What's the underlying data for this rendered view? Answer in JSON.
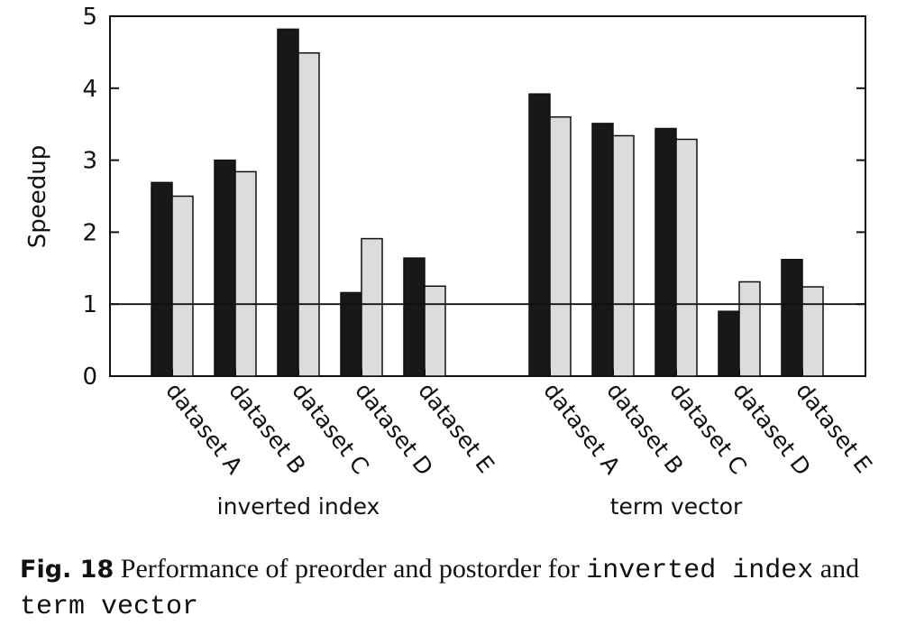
{
  "chart_data": {
    "type": "bar",
    "ylabel": "Speedup",
    "ylim": [
      0,
      5
    ],
    "yticks": [
      "0",
      "1",
      "2",
      "3",
      "4",
      "5"
    ],
    "reference_line": 1,
    "grid": false,
    "colors": {
      "series_0": "#181818",
      "series_1": "#dcdcdc"
    },
    "groups": [
      {
        "label": "inverted index",
        "categories": [
          "dataset A",
          "dataset B",
          "dataset C",
          "dataset D",
          "dataset E"
        ],
        "series": [
          {
            "values": [
              2.69,
              3.0,
              4.82,
              1.16,
              1.64
            ]
          },
          {
            "values": [
              2.5,
              2.84,
              4.49,
              1.91,
              1.25
            ]
          }
        ]
      },
      {
        "label": "term vector",
        "categories": [
          "dataset A",
          "dataset B",
          "dataset C",
          "dataset D",
          "dataset E"
        ],
        "series": [
          {
            "values": [
              3.92,
              3.51,
              3.44,
              0.9,
              1.62
            ]
          },
          {
            "values": [
              3.6,
              3.34,
              3.29,
              1.31,
              1.24
            ]
          }
        ]
      }
    ]
  },
  "caption": {
    "label": "Fig. 18",
    "text_1": "Performance of preorder and postorder for",
    "code_1": "inverted index",
    "text_2": "and",
    "code_2": "term vector"
  }
}
